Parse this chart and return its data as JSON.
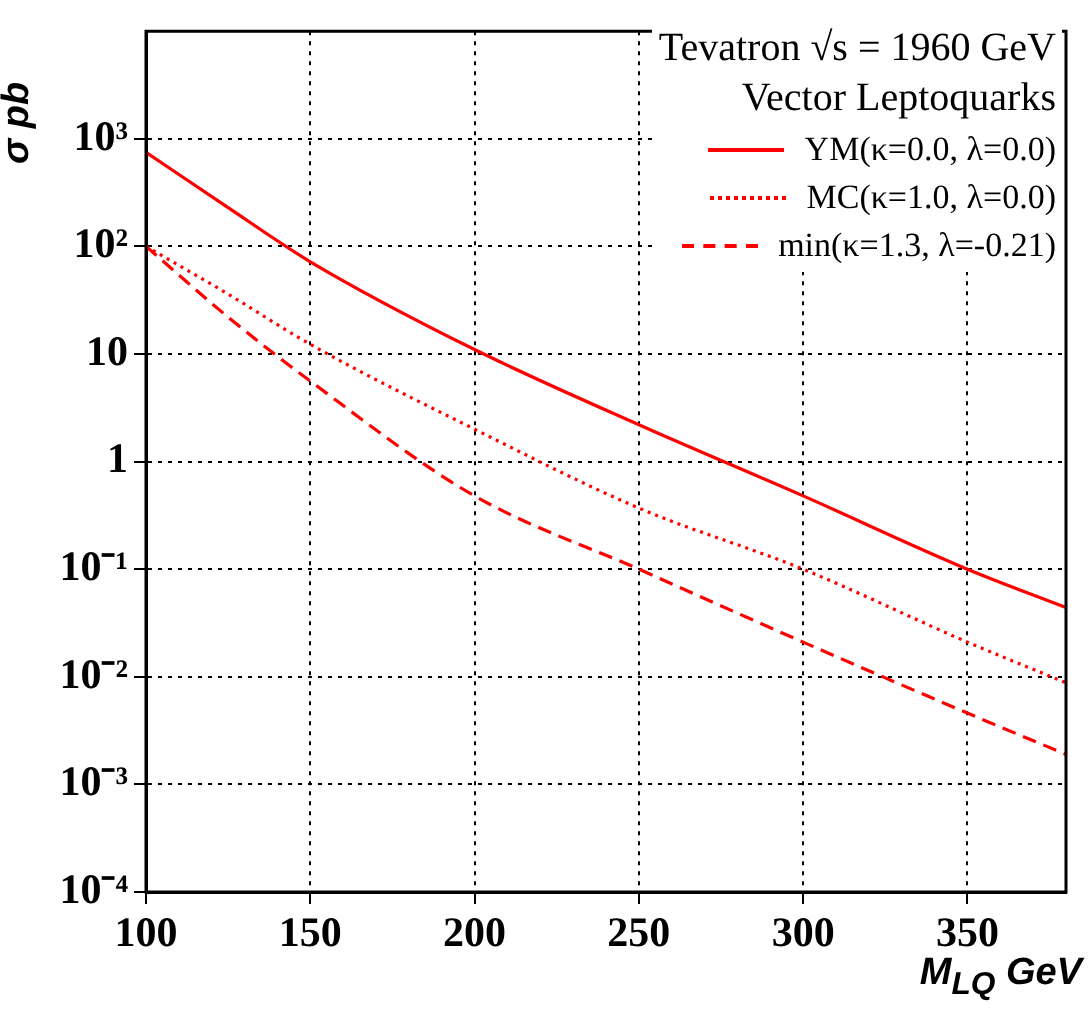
{
  "chart_data": {
    "type": "line",
    "xlabel": "M$_{LQ}$ GeV",
    "ylabel": "σ pb",
    "legend_title": "Tevatron √s = 1960 GeV\nVector Leptoquarks",
    "log": "y",
    "grid": true,
    "legend": "top right",
    "marker": "none",
    "x": [
      100,
      125,
      150,
      200,
      250,
      300,
      350,
      380
    ],
    "xlim": [
      100,
      380
    ],
    "xticks": [
      100,
      150,
      200,
      250,
      300,
      350
    ],
    "ylim": [
      0.0001,
      10000
    ],
    "yticks": [
      {
        "value": 0.0001,
        "label": "10⁻⁴"
      },
      {
        "value": 0.001,
        "label": "10⁻³"
      },
      {
        "value": 0.01,
        "label": "10⁻²"
      },
      {
        "value": 0.1,
        "label": "10⁻¹"
      },
      1,
      10,
      {
        "value": 100,
        "label": "10²"
      },
      {
        "value": 1000,
        "label": "10³"
      }
    ],
    "series": [
      {
        "name": "YM(κ=0.0, λ=0.0)",
        "color": "#ff0000",
        "line_style": "solid",
        "values": [
          750,
          229,
          72,
          11,
          2.2,
          0.48,
          0.1,
          0.044
        ]
      },
      {
        "name": "MC(κ=1.0, λ=0.0)",
        "color": "#ff0000",
        "line_style": "dotted",
        "values": [
          100,
          36,
          12.3,
          2.0,
          0.37,
          0.1,
          0.021,
          0.0088
        ]
      },
      {
        "name": "min(κ=1.3, λ=-0.21)",
        "color": "#ff0000",
        "line_style": "dashed",
        "values": [
          100,
          22,
          5.6,
          0.48,
          0.1,
          0.021,
          0.0046,
          0.0019
        ]
      }
    ]
  }
}
